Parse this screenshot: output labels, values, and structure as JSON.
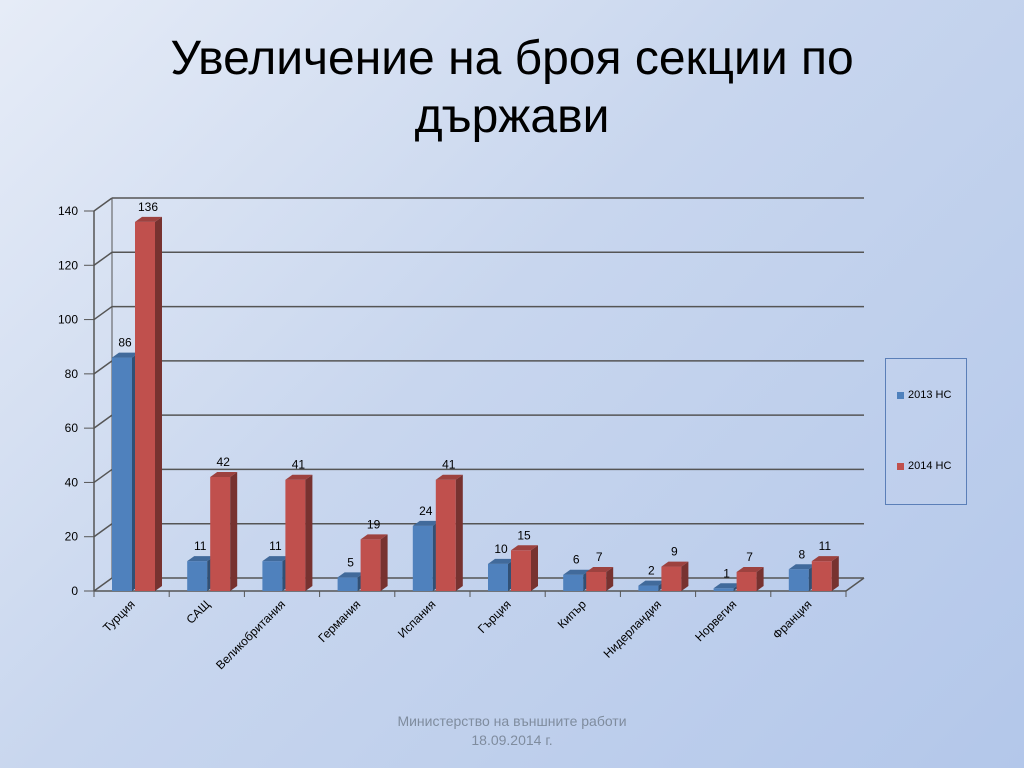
{
  "title_line1": "Увеличение на броя секции по",
  "title_line2": "държави",
  "footer_line1": "Министерство на външните работи",
  "footer_line2": "18.09.2014 г.",
  "chart_data": {
    "type": "bar",
    "categories": [
      "Турция",
      "САЩ",
      "Великобритания",
      "Германия",
      "Испания",
      "Гърция",
      "Кипър",
      "Нидерландия",
      "Норвегия",
      "Франция"
    ],
    "series": [
      {
        "name": "2013 НС",
        "values": [
          86,
          11,
          11,
          5,
          24,
          10,
          6,
          2,
          1,
          8
        ],
        "color": "#4f81bd"
      },
      {
        "name": "2014 НС",
        "values": [
          136,
          42,
          41,
          19,
          41,
          15,
          7,
          9,
          7,
          11
        ],
        "color": "#c0504d"
      }
    ],
    "yticks": [
      0,
      20,
      40,
      60,
      80,
      100,
      120,
      140
    ],
    "ylim": [
      0,
      140
    ],
    "grid": true,
    "legend_position": "right"
  }
}
